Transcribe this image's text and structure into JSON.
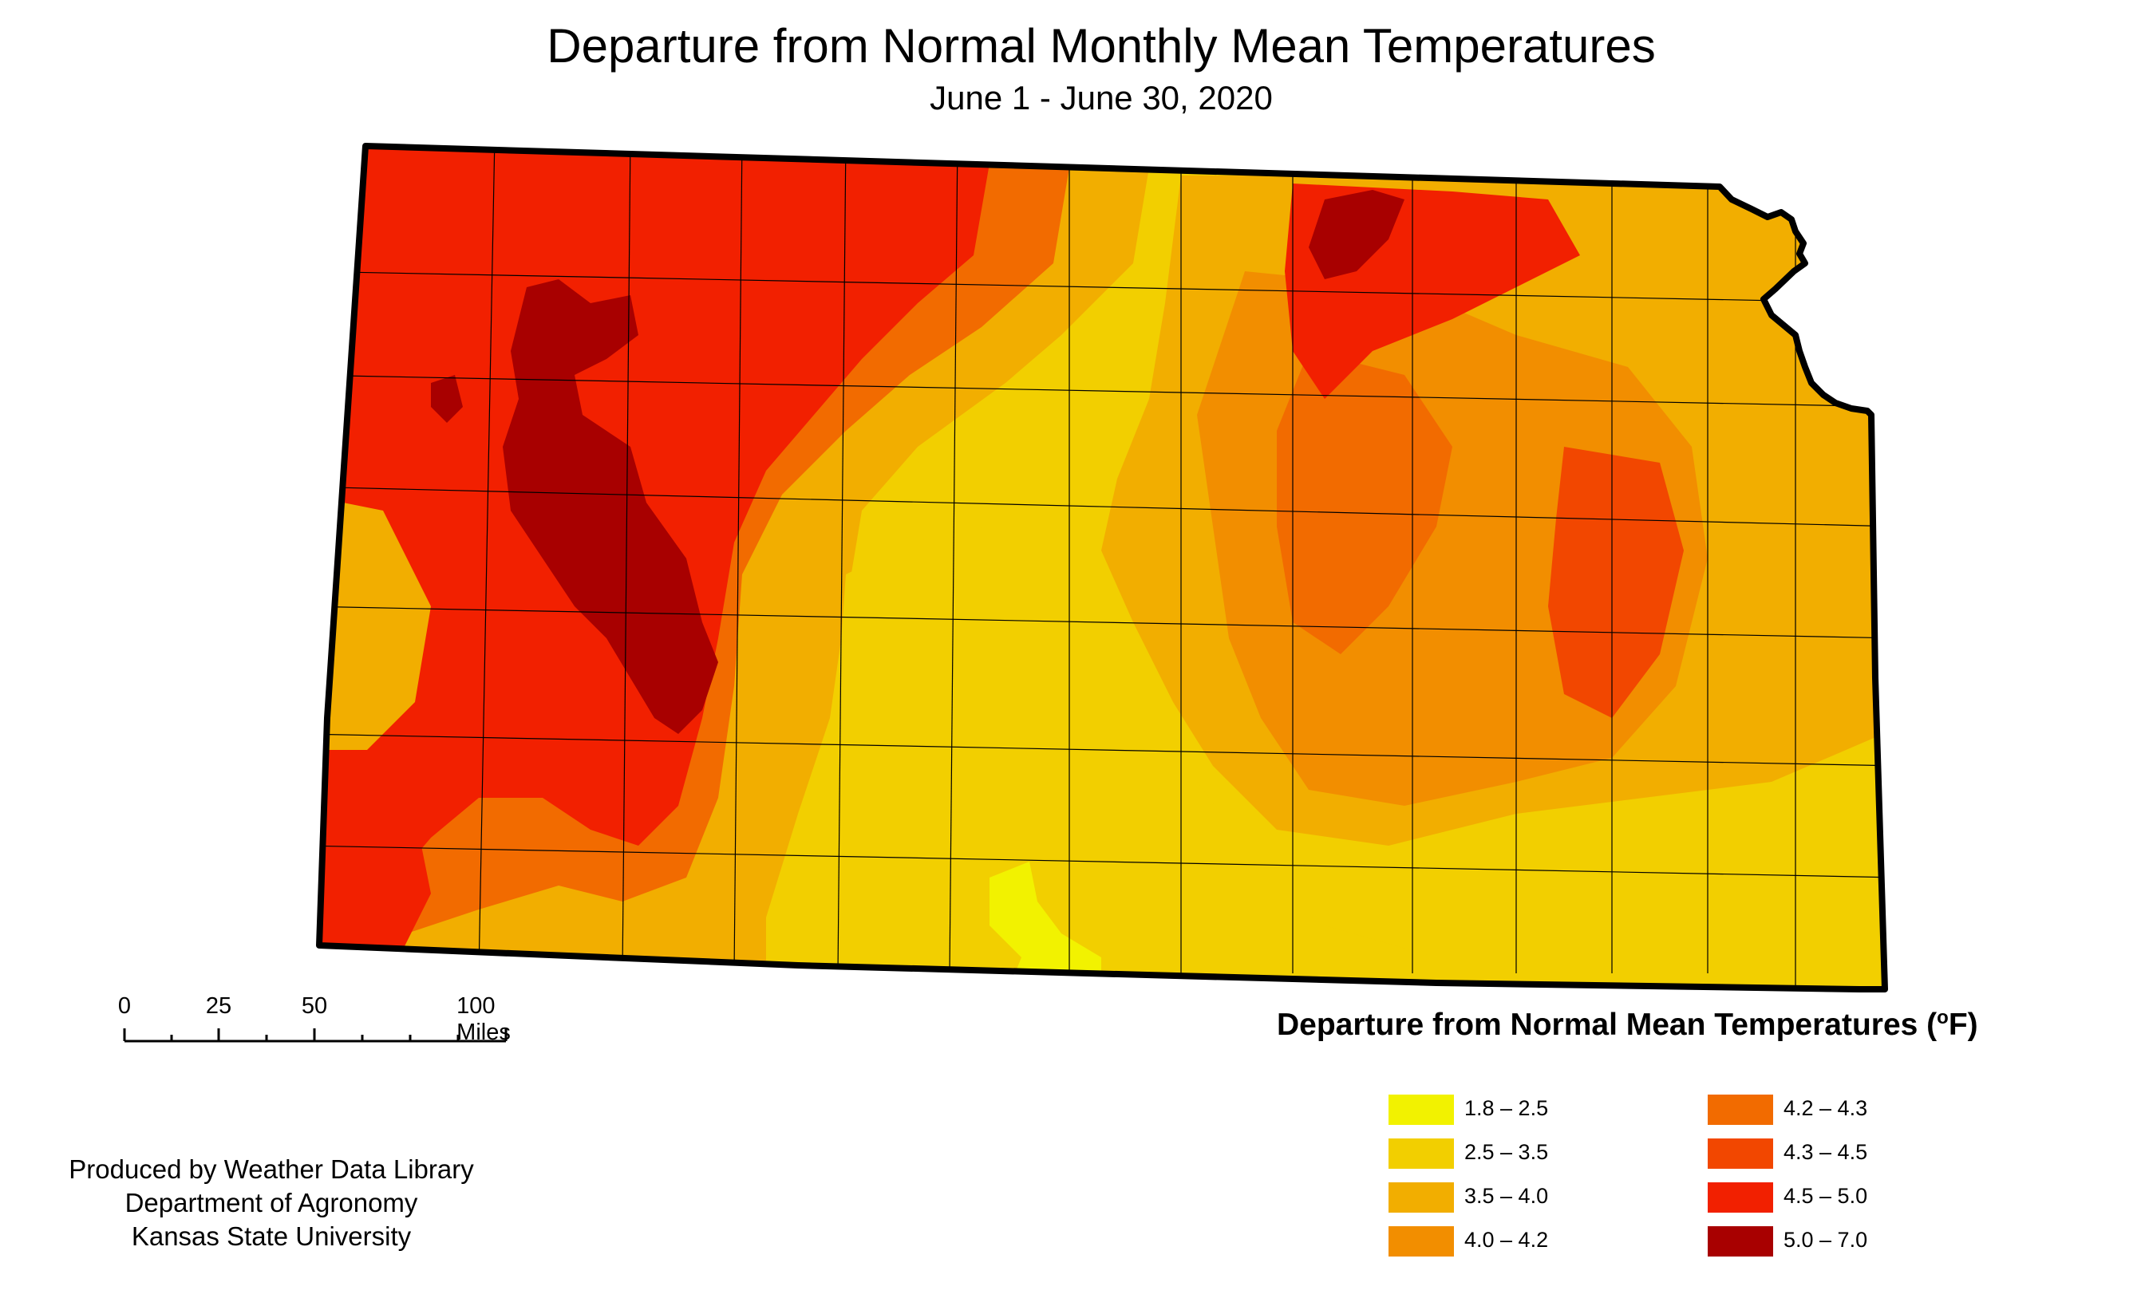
{
  "title": "Departure from Normal Monthly Mean Temperatures",
  "subtitle": "June 1 - June 30, 2020",
  "scale": {
    "ticks": [
      "0",
      "25",
      "50",
      "100 Miles"
    ]
  },
  "credits": {
    "line1": "Produced by Weather Data Library",
    "line2": "Department of Agronomy",
    "line3": "Kansas State University"
  },
  "legend": {
    "title": "Departure from Normal Mean Temperatures (",
    "unit_sup": "o",
    "unit_tail": "F)",
    "items": [
      {
        "label": "1.8 – 2.5",
        "color": "#f2f200"
      },
      {
        "label": "2.5 – 3.5",
        "color": "#f2cf00"
      },
      {
        "label": "3.5 – 4.0",
        "color": "#f2ae00"
      },
      {
        "label": "4.0 – 4.2",
        "color": "#f28e00"
      },
      {
        "label": "4.2 – 4.3",
        "color": "#f26b00"
      },
      {
        "label": "4.3 – 4.5",
        "color": "#f24700"
      },
      {
        "label": "4.5 – 5.0",
        "color": "#f22000"
      },
      {
        "label": "5.0 – 7.0",
        "color": "#a80000"
      }
    ]
  }
}
